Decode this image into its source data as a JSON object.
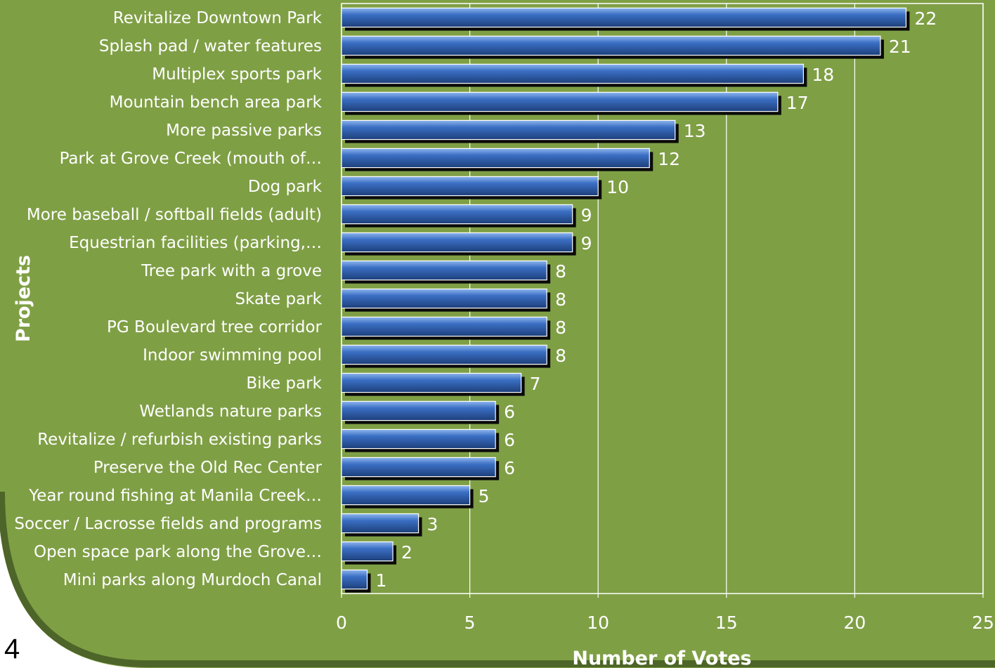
{
  "slide": {
    "page_number": "4",
    "background_color": "#7f9f45",
    "border_color": "#4d6528"
  },
  "chart_data": {
    "type": "bar",
    "orientation": "horizontal",
    "title": "",
    "xlabel": "Number of Votes",
    "ylabel": "Projects",
    "xlim": [
      0,
      25
    ],
    "x_ticks": [
      0,
      5,
      10,
      15,
      20,
      25
    ],
    "grid": true,
    "bar_color": "#3b6fc4",
    "categories": [
      "Revitalize Downtown Park",
      "Splash pad / water features",
      "Multiplex sports park",
      "Mountain bench area park",
      "More passive parks",
      "Park at Grove Creek (mouth of…",
      "Dog park",
      "More baseball / softball fields (adult)",
      "Equestrian facilities (parking,…",
      "Tree park with a grove",
      "Skate park",
      "PG Boulevard tree corridor",
      "Indoor swimming pool",
      "Bike park",
      "Wetlands nature parks",
      "Revitalize / refurbish existing parks",
      "Preserve the Old Rec Center",
      "Year round fishing at Manila Creek…",
      "Soccer / Lacrosse fields and programs",
      "Open space park along the Grove…",
      "Mini parks along Murdoch Canal"
    ],
    "values": [
      22,
      21,
      18,
      17,
      13,
      12,
      10,
      9,
      9,
      8,
      8,
      8,
      8,
      7,
      6,
      6,
      6,
      5,
      3,
      2,
      1
    ]
  }
}
